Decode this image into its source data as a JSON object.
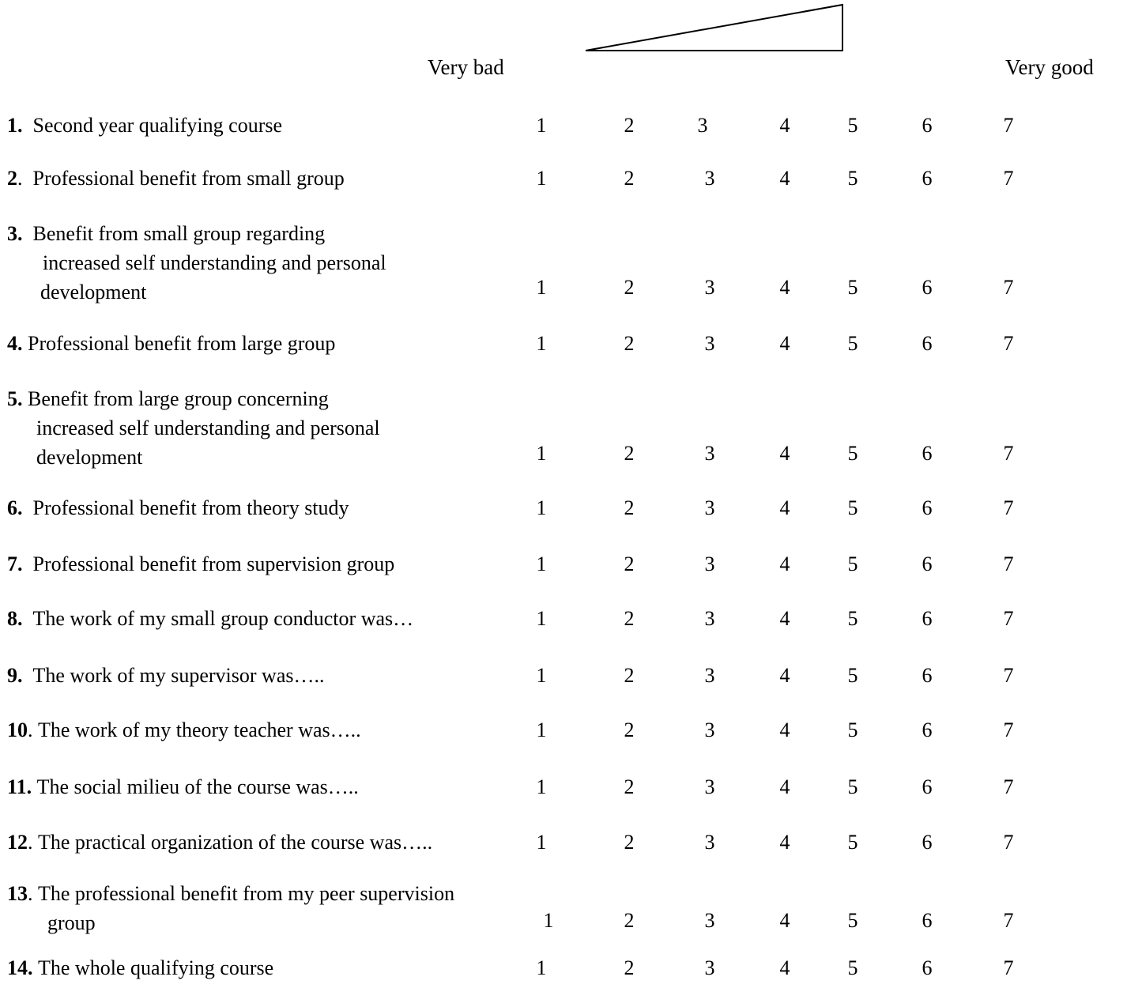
{
  "scale_header": {
    "low_label": "Very bad",
    "high_label": "Very good"
  },
  "scale_options": [
    "1",
    "2",
    "3",
    "4",
    "5",
    "6",
    "7"
  ],
  "questions": [
    {
      "number": "1.",
      "lines": [
        "Second year qualifying course"
      ]
    },
    {
      "number": "2",
      "suffix": ".",
      "lines": [
        "Professional benefit from small group"
      ]
    },
    {
      "number": "3.",
      "lines": [
        "Benefit from small group regarding",
        "increased self understanding and personal",
        "development"
      ]
    },
    {
      "number": "4.",
      "lines": [
        "Professional benefit from large group"
      ]
    },
    {
      "number": "5.",
      "lines": [
        "Benefit from large group concerning",
        "increased self understanding and personal",
        "development"
      ]
    },
    {
      "number": "6.",
      "lines": [
        "Professional benefit from theory study"
      ]
    },
    {
      "number": "7.",
      "lines": [
        "Professional benefit from supervision group"
      ]
    },
    {
      "number": "8.",
      "lines": [
        "The work of my small group conductor was…"
      ]
    },
    {
      "number": "9.",
      "lines": [
        "The work of my supervisor was….."
      ]
    },
    {
      "number": "10",
      "suffix": ".",
      "lines": [
        "The work of my theory teacher was….."
      ]
    },
    {
      "number": "11.",
      "lines": [
        "The social milieu of the course was….."
      ]
    },
    {
      "number": "12",
      "suffix": ".",
      "lines": [
        "The practical organization of the course was….."
      ]
    },
    {
      "number": "13",
      "suffix": ".",
      "lines": [
        "The professional benefit from my peer supervision",
        "group"
      ]
    },
    {
      "number": "14.",
      "lines": [
        "The whole qualifying course"
      ]
    }
  ]
}
